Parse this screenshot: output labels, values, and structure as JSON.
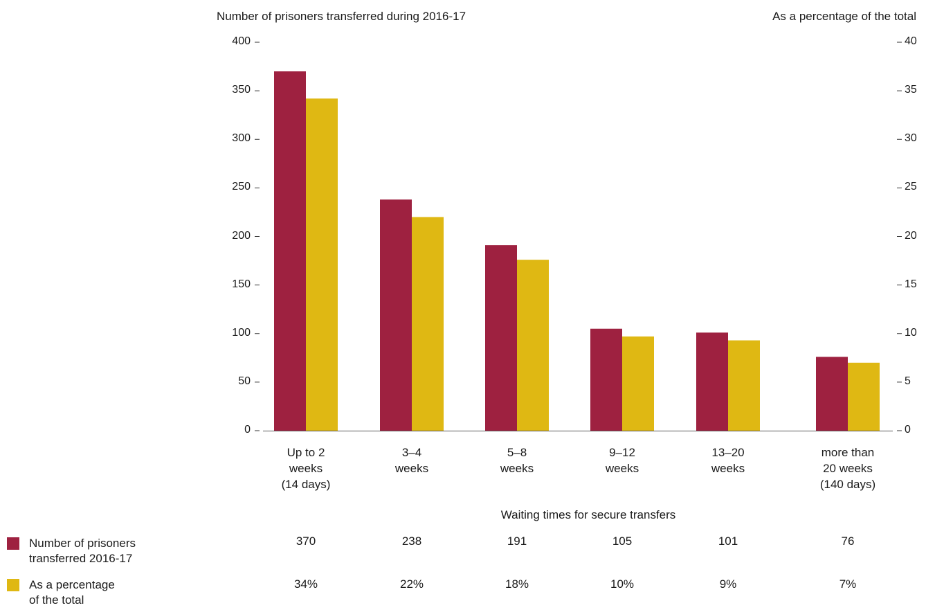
{
  "chart_data": {
    "type": "bar",
    "left_axis_title": "Number of prisoners transferred during 2016-17",
    "right_axis_title": "As a percentage of the total",
    "xlabel": "Waiting times for secure transfers",
    "categories": [
      [
        "Up to 2",
        "weeks",
        "(14 days)"
      ],
      [
        "3–4",
        "weeks"
      ],
      [
        "5–8",
        "weeks"
      ],
      [
        "9–12",
        "weeks"
      ],
      [
        "13–20",
        "weeks"
      ],
      [
        "more than",
        "20 weeks",
        "(140 days)"
      ]
    ],
    "left_ylim": [
      0,
      400
    ],
    "left_ticks": [
      0,
      50,
      100,
      150,
      200,
      250,
      300,
      350,
      400
    ],
    "right_ylim": [
      0,
      40
    ],
    "right_ticks": [
      0,
      5,
      10,
      15,
      20,
      25,
      30,
      35,
      40
    ],
    "series": [
      {
        "name": "Number of prisoners transferred 2016-17",
        "axis": "left",
        "color": "#9e2140",
        "values": [
          370,
          238,
          191,
          105,
          101,
          76
        ]
      },
      {
        "name": "As a percentage of the total",
        "axis": "right",
        "color": "#dfb813",
        "values": [
          34.2,
          22.0,
          17.6,
          9.7,
          9.3,
          7.0
        ]
      }
    ],
    "table_rows": [
      [
        "370",
        "238",
        "191",
        "105",
        "101",
        "76"
      ],
      [
        "34%",
        "22%",
        "18%",
        "10%",
        "9%",
        "7%"
      ]
    ],
    "legend": {
      "placement": "bottom-left",
      "items": [
        {
          "lines": [
            "Number of prisoners",
            "transferred 2016-17"
          ],
          "color": "#9e2140"
        },
        {
          "lines": [
            "As a percentage",
            "of the total"
          ],
          "color": "#dfb813"
        }
      ]
    }
  }
}
